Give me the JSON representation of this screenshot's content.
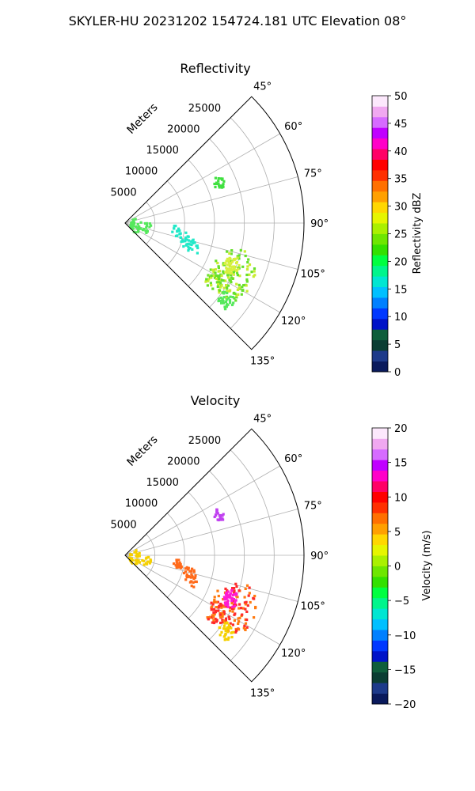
{
  "figure_title": "SKYLER-HU  20231202  154724.181 UTC Elevation 08°",
  "chart_data": [
    {
      "type": "polar-sector",
      "title": "Reflectivity",
      "radial_label": "Meters",
      "radial_ticks": [
        5000,
        10000,
        15000,
        20000,
        25000
      ],
      "radial_range": [
        0,
        30000
      ],
      "azimuth_range_deg": [
        45,
        135
      ],
      "azimuth_ticks": [
        "45°",
        "60°",
        "75°",
        "90°",
        "105°",
        "120°",
        "135°"
      ],
      "grid": true,
      "colorbar": {
        "label": "Reflectivity dBZ",
        "min": 0,
        "max": 50,
        "ticks": [
          "0",
          "5",
          "10",
          "15",
          "20",
          "25",
          "30",
          "35",
          "40",
          "45",
          "50"
        ],
        "stops": [
          "#0a1a5c",
          "#1d3a8a",
          "#0b3d33",
          "#0f5e3b",
          "#0013c8",
          "#0038ff",
          "#0080ff",
          "#00c0ff",
          "#00e6d2",
          "#00f58c",
          "#00ff40",
          "#33e000",
          "#6ee600",
          "#aaf000",
          "#e6f500",
          "#ffd700",
          "#ffa000",
          "#ff7000",
          "#ff3000",
          "#ff0000",
          "#ff0066",
          "#ff00c8",
          "#c000ff",
          "#d66bff",
          "#f0a8f0",
          "#fce8fc"
        ]
      }
    },
    {
      "type": "polar-sector",
      "title": "Velocity",
      "radial_label": "Meters",
      "radial_ticks": [
        5000,
        10000,
        15000,
        20000,
        25000
      ],
      "radial_range": [
        0,
        30000
      ],
      "azimuth_range_deg": [
        45,
        135
      ],
      "azimuth_ticks": [
        "45°",
        "60°",
        "75°",
        "90°",
        "105°",
        "120°",
        "135°"
      ],
      "grid": true,
      "colorbar": {
        "label": "Velocity (m/s)",
        "min": -20,
        "max": 20,
        "ticks": [
          "−20",
          "−15",
          "−10",
          "−5",
          "0",
          "5",
          "10",
          "15",
          "20"
        ],
        "stops": [
          "#0a1a5c",
          "#1d3a8a",
          "#0b3d33",
          "#0f5e3b",
          "#0013c8",
          "#0038ff",
          "#0080ff",
          "#00c0ff",
          "#00e6d2",
          "#00f58c",
          "#00ff40",
          "#33e000",
          "#6ee600",
          "#aaf000",
          "#e6f500",
          "#ffd700",
          "#ffa000",
          "#ff7000",
          "#ff3000",
          "#ff0000",
          "#ff0066",
          "#ff00c8",
          "#c000ff",
          "#d66bff",
          "#f0a8f0",
          "#fce8fc"
        ]
      }
    }
  ]
}
